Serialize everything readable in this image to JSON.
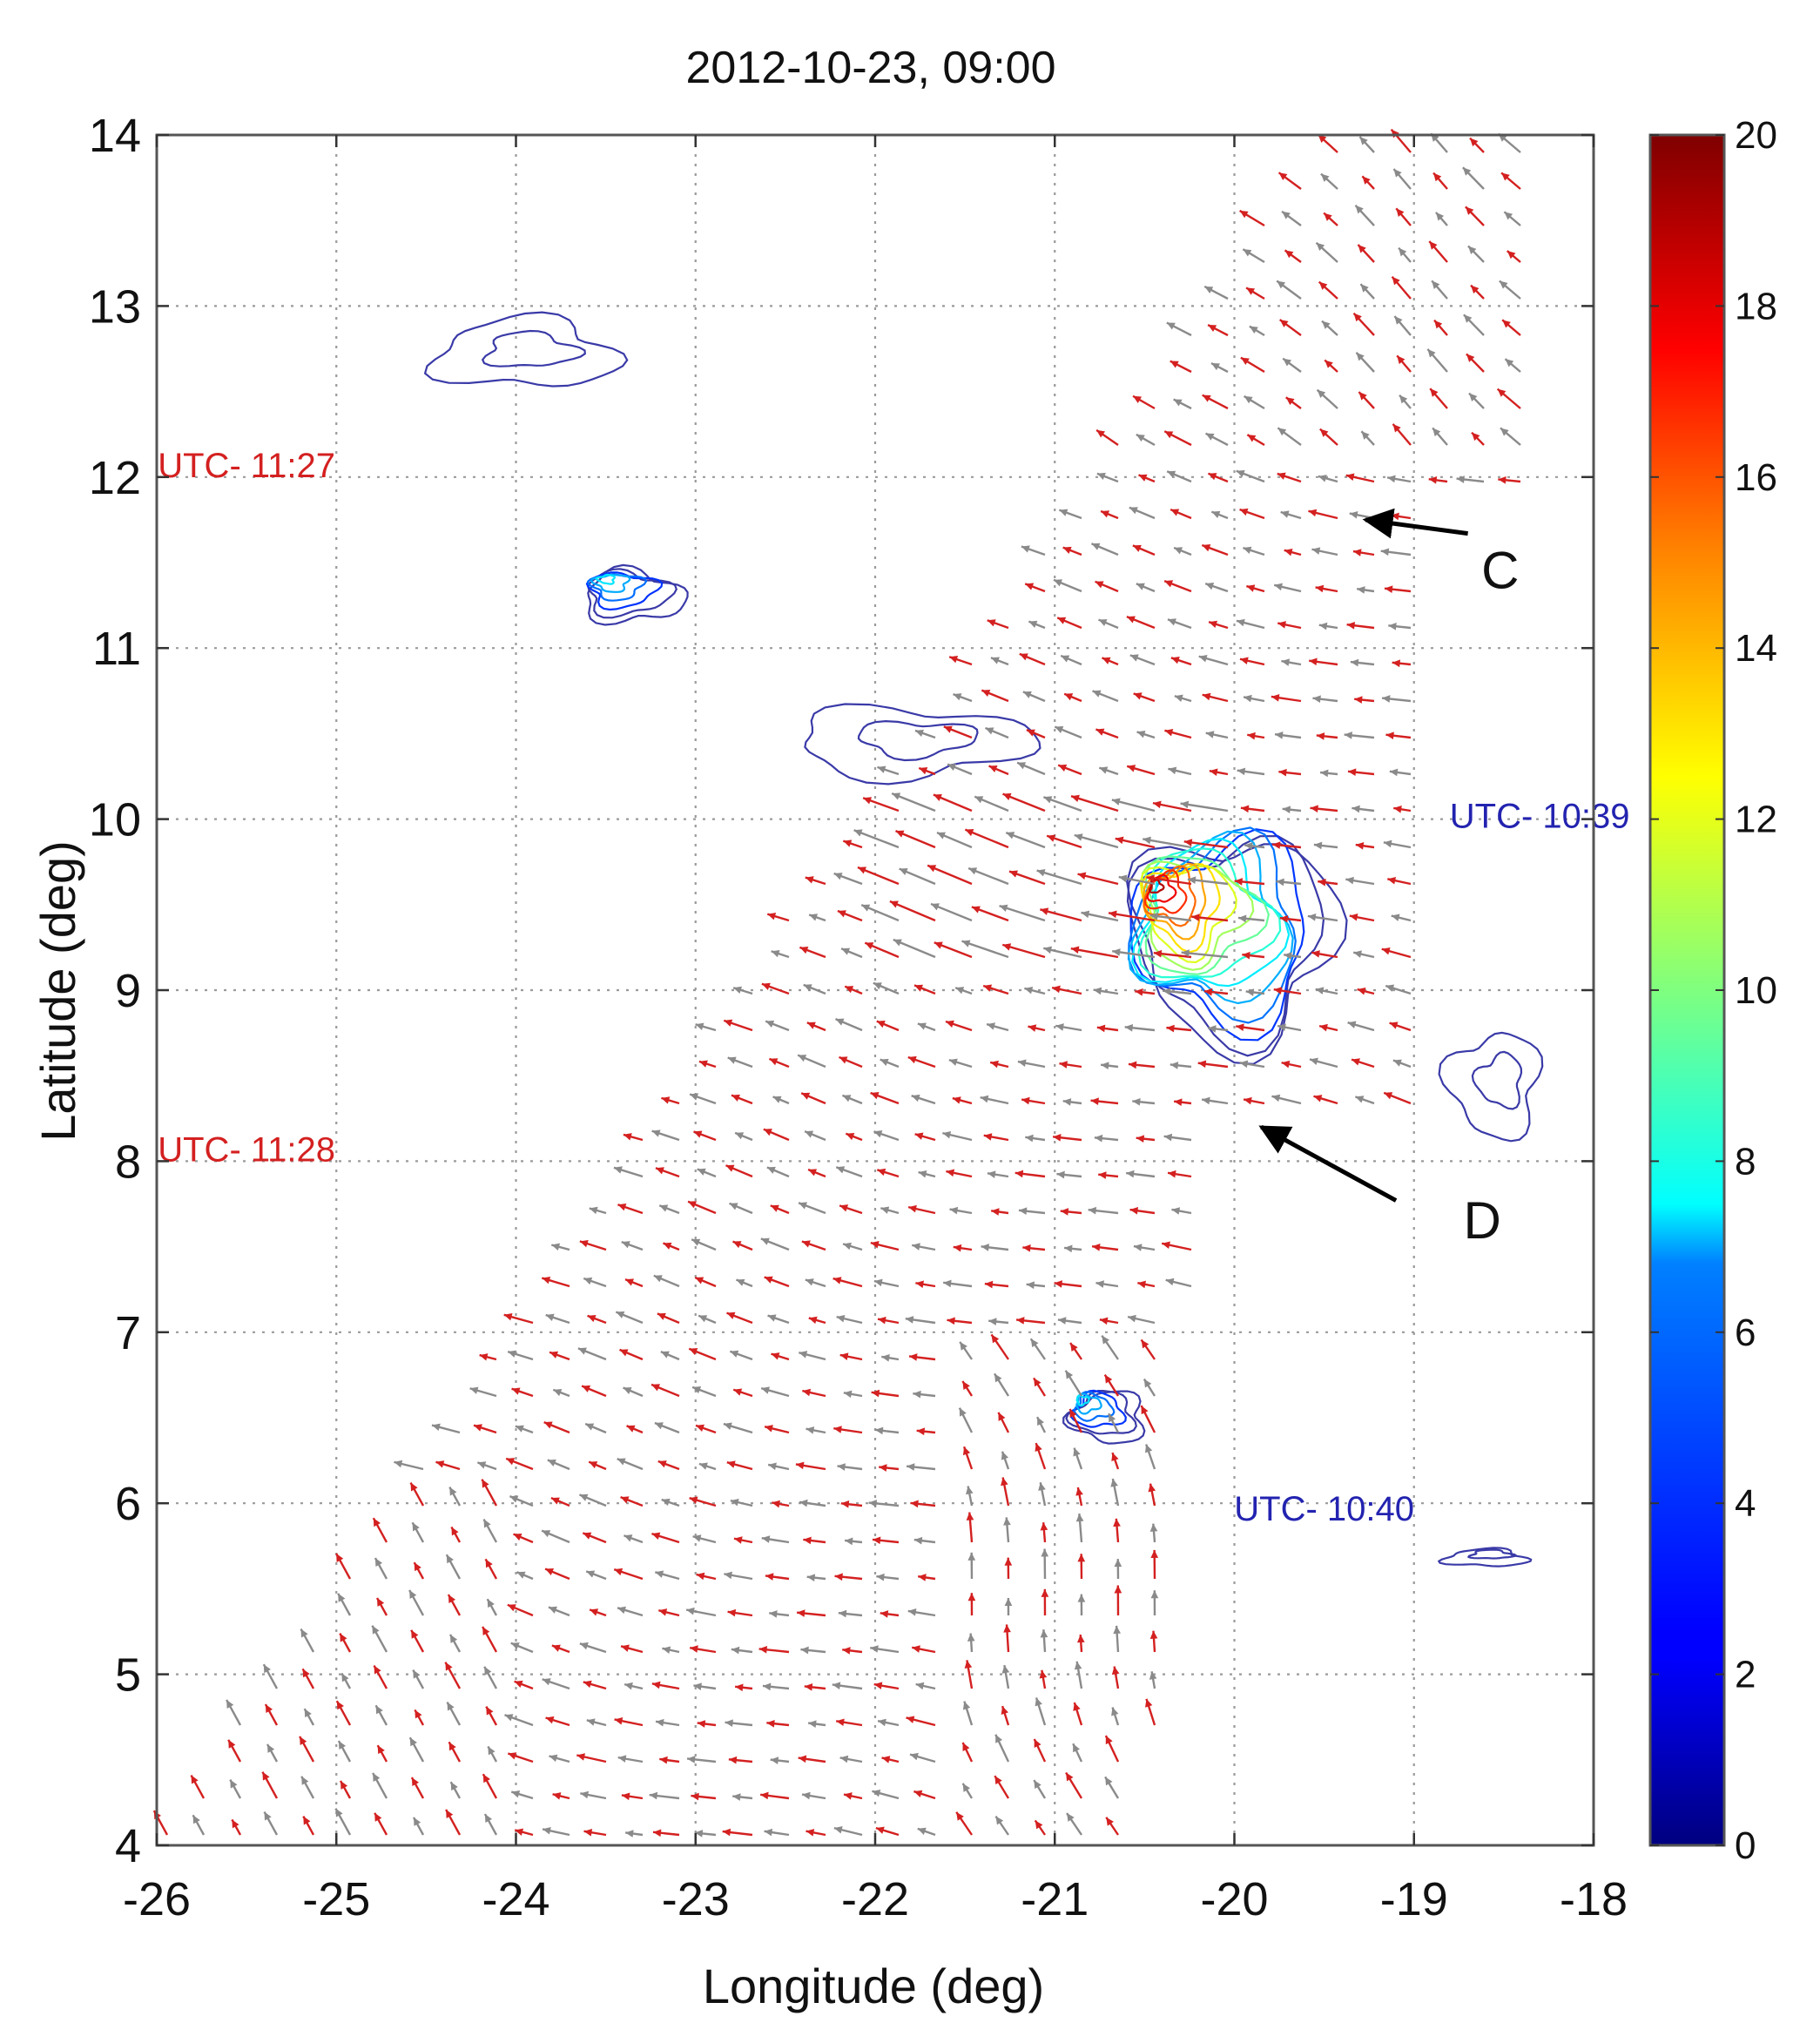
{
  "chart_data": {
    "type": "vector-field",
    "title": "2012-10-23, 09:00",
    "xlabel": "Longitude (deg)",
    "ylabel": "Latitude (deg)",
    "xlim": [
      -26,
      -18
    ],
    "ylim": [
      4,
      14
    ],
    "xticks": [
      -26,
      -25,
      -24,
      -23,
      -22,
      -21,
      -20,
      -19,
      -18
    ],
    "yticks": [
      4,
      5,
      6,
      7,
      8,
      9,
      10,
      11,
      12,
      13,
      14
    ],
    "grid": true,
    "colorbar": {
      "min": 0,
      "max": 20,
      "ticks": [
        0,
        2,
        4,
        6,
        8,
        10,
        12,
        14,
        16,
        18,
        20
      ],
      "colormap": "jet"
    },
    "pass_labels": [
      {
        "text": "UTC- 11:27",
        "lon": -25.5,
        "lat": 12.0,
        "color": "#d42020"
      },
      {
        "text": "UTC- 11:28",
        "lon": -25.5,
        "lat": 8.0,
        "color": "#d42020"
      },
      {
        "text": "UTC- 10:39",
        "lon": -18.3,
        "lat": 9.95,
        "color": "#2323b0"
      },
      {
        "text": "UTC- 10:40",
        "lon": -19.5,
        "lat": 5.9,
        "color": "#2323b0"
      }
    ],
    "annotations": [
      {
        "text": "C",
        "lon": -18.52,
        "lat": 11.35,
        "arrow_to": [
          -19.27,
          11.75
        ],
        "arrow_from": [
          -18.7,
          11.67
        ]
      },
      {
        "text": "D",
        "lon": -18.62,
        "lat": 7.55,
        "arrow_to": [
          -19.85,
          8.2
        ],
        "arrow_from": [
          -19.1,
          7.77
        ]
      }
    ],
    "rain_features": [
      {
        "name": "cell-a",
        "lon": -23.95,
        "lat": 12.72,
        "size": [
          1.0,
          0.4
        ],
        "peak": 2
      },
      {
        "name": "cell-b",
        "lon": -23.35,
        "lat": 11.3,
        "size": [
          0.55,
          0.3
        ],
        "peak": 7
      },
      {
        "name": "cell-c",
        "lon": -21.8,
        "lat": 10.45,
        "size": [
          1.3,
          0.4
        ],
        "peak": 2
      },
      {
        "name": "cell-d",
        "lon": -20.0,
        "lat": 9.3,
        "size": [
          1.1,
          1.2
        ],
        "peak": 19
      },
      {
        "name": "cell-e",
        "lon": -18.55,
        "lat": 8.45,
        "size": [
          0.5,
          0.6
        ],
        "peak": 2
      },
      {
        "name": "cell-f",
        "lon": -20.7,
        "lat": 6.5,
        "size": [
          0.4,
          0.3
        ],
        "peak": 7
      },
      {
        "name": "cell-g",
        "lon": -18.6,
        "lat": 5.68,
        "size": [
          0.45,
          0.1
        ],
        "peak": 2
      }
    ],
    "vector_color_pass_1": "#d42020",
    "vector_color_pass_2": "#8a8a8a"
  }
}
